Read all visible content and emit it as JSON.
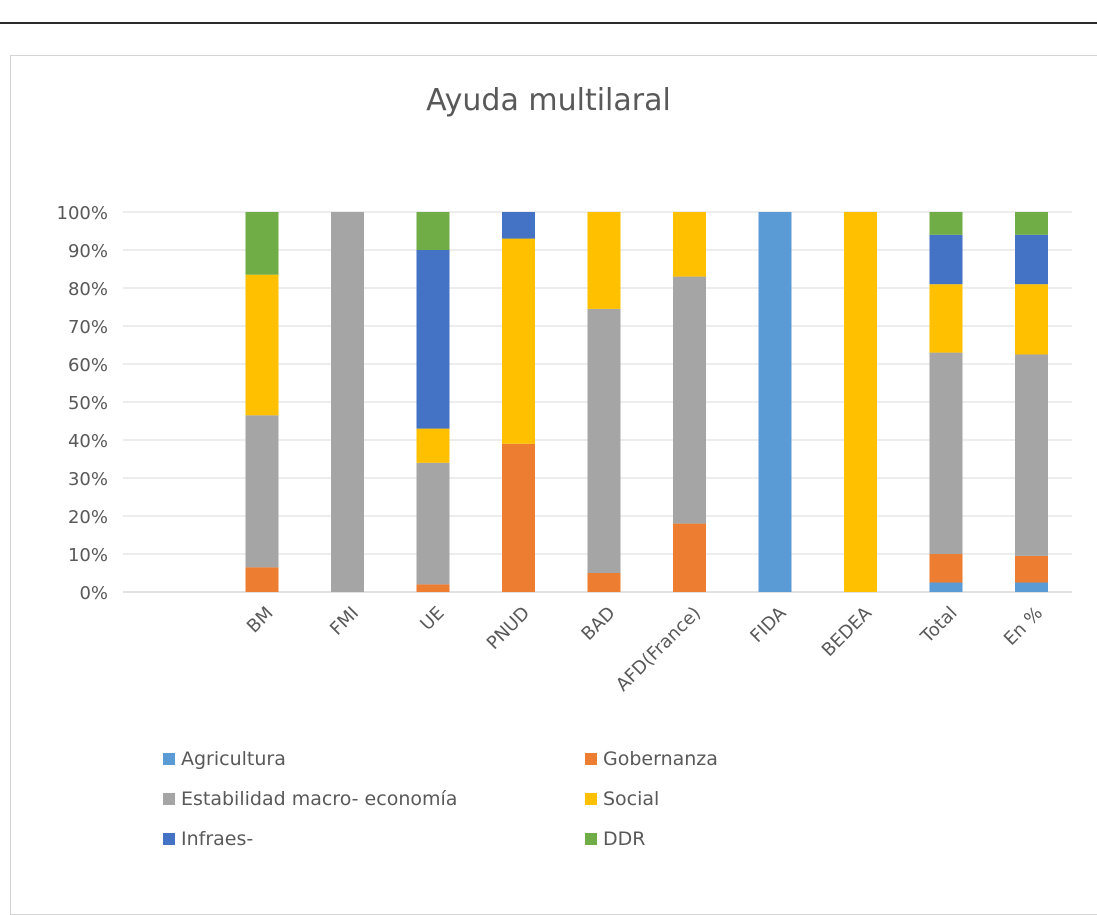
{
  "chart_data": {
    "type": "bar",
    "stacked": true,
    "title": "Ayuda multilaral",
    "categories": [
      "BM",
      "FMI",
      "UE",
      "PNUD",
      "BAD",
      "AFD(France)",
      "FIDA",
      "BEDEA",
      "Total",
      "En %"
    ],
    "y_ticks": [
      "0%",
      "10%",
      "20%",
      "30%",
      "40%",
      "50%",
      "60%",
      "70%",
      "80%",
      "90%",
      "100%"
    ],
    "ylim": [
      0,
      100
    ],
    "grid": true,
    "legend_position": "bottom",
    "series": [
      {
        "name": "Agricultura",
        "color": "#5B9BD5",
        "values": [
          0,
          0,
          0,
          0,
          0,
          0,
          100,
          0,
          2.5,
          2.5
        ]
      },
      {
        "name": "Gobernanza",
        "color": "#ED7D31",
        "values": [
          6.5,
          0,
          2,
          39,
          5,
          18,
          0,
          0,
          7.5,
          7
        ]
      },
      {
        "name": "Estabilidad macro- economía",
        "color": "#A5A5A5",
        "values": [
          40,
          100,
          32,
          0,
          69.5,
          65,
          0,
          0,
          53,
          53
        ]
      },
      {
        "name": "Social",
        "color": "#FFC000",
        "values": [
          37,
          0,
          9,
          54,
          25.5,
          17,
          0,
          100,
          18,
          18.5
        ]
      },
      {
        "name": "Infraes-",
        "color": "#4472C4",
        "values": [
          0,
          0,
          47,
          7,
          0,
          0,
          0,
          0,
          13,
          13
        ]
      },
      {
        "name": "DDR",
        "color": "#70AD47",
        "values": [
          16.5,
          0,
          10,
          0,
          0,
          0,
          0,
          0,
          6,
          6
        ]
      }
    ]
  }
}
